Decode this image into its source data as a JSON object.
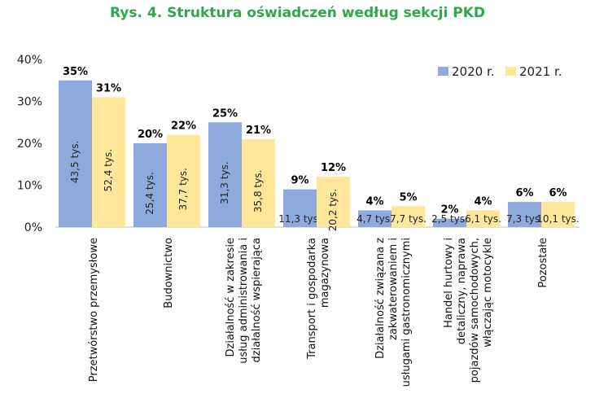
{
  "chart_data": {
    "type": "bar",
    "title": "Rys. 4. Struktura oświadczeń według sekcji PKD",
    "ylim": [
      0,
      40
    ],
    "yticks": [
      "0%",
      "10%",
      "20%",
      "30%",
      "40%"
    ],
    "grid": false,
    "legend_position": "top-right",
    "categories": [
      [
        "Przetwórstwo przemysłowe"
      ],
      [
        "Budownictwo"
      ],
      [
        "Działalność w zakresie",
        "usług administrowania i",
        "działalność wspierająca"
      ],
      [
        "Transport i gospodarka",
        "magazynowa"
      ],
      [
        "Działalność związana z",
        "zakwaterowaniem i",
        "usługami gastronomicznymi"
      ],
      [
        "Handel hurtowy i",
        "detaliczny, naprawa",
        "pojazdów samochodowych,",
        "włączając motocykle"
      ],
      [
        "Pozostałe"
      ]
    ],
    "series": [
      {
        "name": "2020 r.",
        "color": "#8eaadc",
        "values": [
          35,
          20,
          25,
          9,
          4,
          2,
          6
        ],
        "value_labels": [
          "35%",
          "20%",
          "25%",
          "9%",
          "4%",
          "2%",
          "6%"
        ],
        "count_labels": [
          "43,5 tys.",
          "25,4 tys.",
          "31,3 tys.",
          "11,3 tys.",
          "4,7 tys.",
          "2,5 tys.",
          "7,3 tys."
        ]
      },
      {
        "name": "2021 r.",
        "color": "#ffe699",
        "values": [
          31,
          22,
          21,
          12,
          5,
          4,
          6
        ],
        "value_labels": [
          "31%",
          "22%",
          "21%",
          "12%",
          "5%",
          "4%",
          "6%"
        ],
        "count_labels": [
          "52,4 tys.",
          "37,7 tys.",
          "35,8 tys.",
          "20,2 tys.",
          "7,7 tys.",
          "6,1 tys.",
          "10,1 tys."
        ]
      }
    ]
  }
}
